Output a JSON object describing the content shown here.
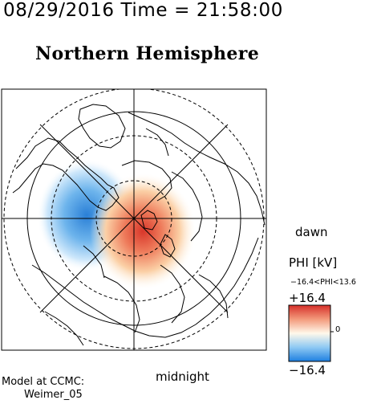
{
  "header": {
    "date_time": "08/29/2016 Time = 21:58:00",
    "title": "Northern Hemisphere"
  },
  "map": {
    "projection": "north polar stereographic",
    "grid": true,
    "labels": {
      "dawn": "dawn",
      "midnight": "midnight"
    },
    "potential_pattern": {
      "negative_cell": "dusk side (pre-midnight/evening sector)",
      "positive_cell": "dawn/midnight sector near pole"
    }
  },
  "colorbar": {
    "title": "PHI [kV]",
    "range_text": "−16.4<PHI<13.6",
    "max_label": "+16.4",
    "min_label": "−16.4",
    "zero_label": "0",
    "colors": {
      "positive": "#d83a2c",
      "neutral": "#fffbe6",
      "negative": "#2f8bd9"
    }
  },
  "credits": {
    "line1": "Model at CCMC:",
    "line2": "Weimer_05"
  }
}
